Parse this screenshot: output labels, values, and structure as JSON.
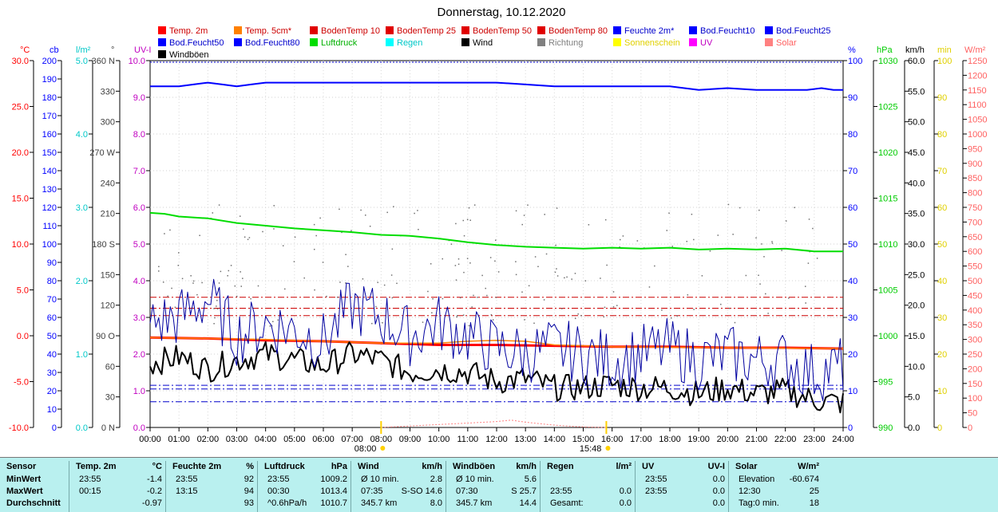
{
  "title": "Donnerstag, 10.12.2020",
  "legend": [
    {
      "label": "Temp. 2m",
      "color": "#ff0000"
    },
    {
      "label": "Temp. 5cm*",
      "color": "#ff8000"
    },
    {
      "label": "BodenTemp 10",
      "color": "#e00000"
    },
    {
      "label": "BodenTemp 25",
      "color": "#e00000"
    },
    {
      "label": "BodenTemp 50",
      "color": "#e00000"
    },
    {
      "label": "BodenTemp 80",
      "color": "#e00000"
    },
    {
      "label": "Feuchte 2m*",
      "color": "#0000ff"
    },
    {
      "label": "Bod.Feucht10",
      "color": "#0000ff"
    },
    {
      "label": "Bod.Feucht25",
      "color": "#0000ff"
    },
    {
      "label": "Bod.Feucht50",
      "color": "#0000ff"
    },
    {
      "label": "Bod.Feucht80",
      "color": "#0000ff"
    },
    {
      "label": "Luftdruck",
      "color": "#00dd00"
    },
    {
      "label": "Regen",
      "color": "#00ffff"
    },
    {
      "label": "Wind",
      "color": "#000000"
    },
    {
      "label": "Richtung",
      "color": "#808080"
    },
    {
      "label": "Sonnenschein",
      "color": "#ffff00"
    },
    {
      "label": "UV",
      "color": "#ff00ff"
    },
    {
      "label": "Solar",
      "color": "#ff8080"
    },
    {
      "label": "Windböen",
      "color": "#000000"
    }
  ],
  "axes": {
    "temp": {
      "unit": "°C",
      "color": "#ff0000",
      "min": -10,
      "max": 30,
      "ticks": [
        "30.0",
        "25.0",
        "20.0",
        "15.0",
        "10.0",
        "5.0",
        "0.0",
        "-5.0",
        "-10.0"
      ]
    },
    "cb": {
      "unit": "cb",
      "color": "#0000ff",
      "min": 0,
      "max": 200,
      "ticks": [
        "200",
        "190",
        "180",
        "170",
        "160",
        "150",
        "140",
        "130",
        "120",
        "110",
        "100",
        "90",
        "80",
        "70",
        "60",
        "50",
        "40",
        "30",
        "20",
        "10",
        "0"
      ]
    },
    "rain": {
      "unit": "l/m²",
      "color": "#00c8c8",
      "min": 0,
      "max": 5,
      "ticks": [
        "5.0",
        "4.0",
        "3.0",
        "2.0",
        "1.0",
        "0.0"
      ]
    },
    "dir": {
      "unit": "°",
      "color": "#404040",
      "min": 0,
      "max": 360,
      "ticks": [
        "360 N",
        "330",
        "300",
        "270 W",
        "240",
        "210",
        "180 S",
        "150",
        "120",
        "90 O",
        "60",
        "30",
        "0 N"
      ]
    },
    "uvi": {
      "unit": "UV-I",
      "color": "#c000c0",
      "min": 0,
      "max": 10,
      "ticks": [
        "10.0",
        "9.0",
        "8.0",
        "7.0",
        "6.0",
        "5.0",
        "4.0",
        "3.0",
        "2.0",
        "1.0",
        "0.0"
      ]
    },
    "hum": {
      "unit": "%",
      "color": "#0000ff",
      "min": 0,
      "max": 100,
      "ticks": [
        "100",
        "90",
        "80",
        "70",
        "60",
        "50",
        "40",
        "30",
        "20",
        "10",
        "0"
      ]
    },
    "press": {
      "unit": "hPa",
      "color": "#00cc00",
      "min": 990,
      "max": 1030,
      "ticks": [
        "1030",
        "1025",
        "1020",
        "1015",
        "1010",
        "1005",
        "1000",
        "995",
        "990"
      ]
    },
    "wind": {
      "unit": "km/h",
      "color": "#000000",
      "min": 0,
      "max": 60,
      "ticks": [
        "60.0",
        "55.0",
        "50.0",
        "45.0",
        "40.0",
        "35.0",
        "30.0",
        "25.0",
        "20.0",
        "15.0",
        "10.0",
        "5.0",
        "0.0"
      ]
    },
    "sun": {
      "unit": "min",
      "color": "#e0d000",
      "min": 0,
      "max": 100,
      "ticks": [
        "100",
        "90",
        "80",
        "70",
        "60",
        "50",
        "40",
        "30",
        "20",
        "10",
        "0"
      ]
    },
    "solar": {
      "unit": "W/m²",
      "color": "#ff6060",
      "min": 0,
      "max": 1250,
      "ticks": [
        "1250",
        "1200",
        "1150",
        "1100",
        "1050",
        "1000",
        "950",
        "900",
        "850",
        "800",
        "750",
        "700",
        "650",
        "600",
        "550",
        "500",
        "450",
        "400",
        "350",
        "300",
        "250",
        "200",
        "150",
        "100",
        "50",
        "0"
      ]
    }
  },
  "x_ticks": [
    "00:00",
    "01:00",
    "02:00",
    "03:00",
    "04:00",
    "05:00",
    "06:00",
    "07:00",
    "08:00",
    "09:00",
    "10:00",
    "11:00",
    "12:00",
    "13:00",
    "14:00",
    "15:00",
    "16:00",
    "17:00",
    "18:00",
    "19:00",
    "20:00",
    "21:00",
    "22:00",
    "23:00",
    "24:00"
  ],
  "x_markers": [
    {
      "label": "08:00",
      "hour": 8.0,
      "color": "#ffd000"
    },
    {
      "label": "15:48",
      "hour": 15.8,
      "color": "#ffd000"
    }
  ],
  "chart_data": {
    "type": "line",
    "title": "Donnerstag, 10.12.2020",
    "x_range": [
      "00:00",
      "24:00"
    ],
    "series": [
      {
        "name": "Feuchte 2m*",
        "axis": "hum",
        "color": "#0000ff",
        "x": [
          "00:00",
          "01:00",
          "01:30",
          "02:00",
          "02:30",
          "03:00",
          "03:30",
          "04:00",
          "06:00",
          "08:00",
          "10:00",
          "12:00",
          "13:00",
          "14:00",
          "16:00",
          "18:00",
          "19:00",
          "20:00",
          "21:00",
          "22:00",
          "22:45",
          "23:15",
          "23:40",
          "24:00"
        ],
        "y": [
          93,
          93,
          93.5,
          94,
          93.5,
          93,
          93.5,
          94,
          94,
          94,
          94,
          94,
          93.5,
          93,
          93,
          93,
          92,
          92.5,
          92,
          92,
          92,
          92.5,
          92,
          92
        ]
      },
      {
        "name": "Luftdruck",
        "axis": "press",
        "color": "#00dd00",
        "x": [
          "00:00",
          "00:30",
          "01:00",
          "02:00",
          "03:00",
          "04:00",
          "05:00",
          "06:00",
          "07:00",
          "08:00",
          "09:00",
          "10:00",
          "11:00",
          "12:00",
          "13:00",
          "14:00",
          "15:00",
          "16:00",
          "17:00",
          "18:00",
          "19:00",
          "20:00",
          "21:00",
          "22:00",
          "23:00",
          "24:00"
        ],
        "y": [
          1013.4,
          1013.3,
          1013.0,
          1012.8,
          1012.3,
          1012.0,
          1011.7,
          1011.5,
          1011.3,
          1011.0,
          1010.9,
          1010.6,
          1010.2,
          1009.9,
          1009.7,
          1009.6,
          1009.5,
          1009.6,
          1009.5,
          1009.6,
          1009.4,
          1009.5,
          1009.4,
          1009.5,
          1009.2,
          1009.2
        ]
      },
      {
        "name": "Temp. 2m",
        "axis": "temp",
        "color": "#ff0000",
        "x": [
          "00:00",
          "02:00",
          "04:00",
          "06:00",
          "08:00",
          "10:00",
          "12:00",
          "14:00",
          "16:00",
          "18:00",
          "20:00",
          "22:00",
          "24:00"
        ],
        "y": [
          -0.2,
          -0.3,
          -0.5,
          -0.6,
          -0.8,
          -1.0,
          -1.0,
          -1.1,
          -1.2,
          -1.2,
          -1.3,
          -1.3,
          -1.4
        ]
      },
      {
        "name": "Temp. 5cm*",
        "axis": "temp",
        "color": "#ff8000",
        "x": [
          "00:00",
          "02:00",
          "04:00",
          "06:00",
          "08:00",
          "10:00",
          "11:00",
          "12:00",
          "13:00",
          "14:00",
          "16:00",
          "20:00",
          "24:00"
        ],
        "y": [
          -0.2,
          -0.3,
          -0.4,
          -0.6,
          -0.8,
          -0.8,
          -0.6,
          -0.5,
          -0.6,
          -1.0,
          -1.2,
          -1.3,
          -1.4
        ]
      },
      {
        "name": "Wind",
        "axis": "wind",
        "color": "#000000",
        "x": [
          "00:00",
          "01:00",
          "02:00",
          "03:00",
          "04:00",
          "05:00",
          "06:00",
          "07:00",
          "08:00",
          "09:00",
          "10:00",
          "11:00",
          "12:00",
          "13:00",
          "14:00",
          "15:00",
          "16:00",
          "17:00",
          "18:00",
          "19:00",
          "20:00",
          "21:00",
          "22:00",
          "23:00",
          "24:00"
        ],
        "y": [
          10.5,
          11.5,
          9.5,
          11,
          12,
          11,
          10,
          12,
          11,
          9,
          9.5,
          9,
          7.5,
          8,
          6.5,
          6.5,
          7,
          6.5,
          6.5,
          5.5,
          6.5,
          5.5,
          6,
          4.5,
          4
        ]
      },
      {
        "name": "Windböen",
        "axis": "wind",
        "color": "#0000a0",
        "x": [
          "00:00",
          "01:00",
          "02:00",
          "03:00",
          "04:00",
          "05:00",
          "06:00",
          "07:00",
          "08:00",
          "09:00",
          "10:00",
          "11:00",
          "12:00",
          "13:00",
          "14:00",
          "15:00",
          "16:00",
          "17:00",
          "18:00",
          "19:00",
          "20:00",
          "21:00",
          "22:00",
          "23:00",
          "24:00"
        ],
        "y": [
          17,
          18,
          21,
          15,
          17,
          16,
          14,
          20,
          18,
          15,
          17,
          15,
          13,
          12,
          13,
          12,
          11,
          12,
          13,
          11,
          12,
          11,
          11,
          9,
          10
        ]
      },
      {
        "name": "Solar",
        "axis": "solar",
        "color": "#ff8080",
        "x": [
          "08:00",
          "09:00",
          "10:00",
          "11:00",
          "12:00",
          "12:30",
          "13:00",
          "14:00",
          "15:00",
          "15:48"
        ],
        "y": [
          0,
          5,
          10,
          15,
          20,
          25,
          18,
          8,
          2,
          0
        ]
      }
    ],
    "reference_lines": [
      {
        "axis": "temp",
        "value": 4.2,
        "color": "#cc0000"
      },
      {
        "axis": "temp",
        "value": 3.0,
        "color": "#cc0000"
      },
      {
        "axis": "temp",
        "value": 2.2,
        "color": "#cc0000"
      },
      {
        "axis": "hum",
        "value": 11.5,
        "color": "#0000cc"
      },
      {
        "axis": "hum",
        "value": 10.5,
        "color": "#0000cc"
      },
      {
        "axis": "hum",
        "value": 7,
        "color": "#0000cc"
      }
    ]
  },
  "summary": {
    "sensor": {
      "header": "Sensor",
      "rows": [
        "MinWert",
        "MaxWert",
        "Durchschnitt"
      ]
    },
    "blocks": [
      {
        "title": "Temp. 2m",
        "unit": "°C",
        "rows": [
          [
            "23:55",
            "",
            "-1.4"
          ],
          [
            "00:15",
            "",
            "-0.2"
          ],
          [
            "",
            "",
            "-0.97"
          ]
        ]
      },
      {
        "title": "Feuchte 2m",
        "unit": "%",
        "rows": [
          [
            "23:55",
            "",
            "92"
          ],
          [
            "13:15",
            "",
            "94"
          ],
          [
            "",
            "",
            "93"
          ]
        ]
      },
      {
        "title": "Luftdruck",
        "unit": "hPa",
        "rows": [
          [
            "23:55",
            "",
            "1009.2"
          ],
          [
            "00:30",
            "",
            "1013.4"
          ],
          [
            "^0.6hPa/h",
            "",
            "1010.7"
          ]
        ]
      },
      {
        "title": "Wind",
        "unit": "km/h",
        "rows": [
          [
            "Ø 10 min.",
            "",
            "2.8"
          ],
          [
            "07:35",
            "S-SO 14.6",
            ""
          ],
          [
            "345.7 km",
            "",
            "8.0"
          ]
        ]
      },
      {
        "title": "Windböen",
        "unit": "km/h",
        "rows": [
          [
            "Ø 10 min.",
            "",
            "5.6"
          ],
          [
            "07:30",
            "S 25.7",
            ""
          ],
          [
            "345.7 km",
            "",
            "14.4"
          ]
        ]
      },
      {
        "title": "Regen",
        "unit": "l/m²",
        "rows": [
          [
            "",
            "",
            ""
          ],
          [
            "23:55",
            "",
            "0.0"
          ],
          [
            "Gesamt:",
            "",
            "0.0"
          ]
        ]
      },
      {
        "title": "UV",
        "unit": "UV-I",
        "rows": [
          [
            "23:55",
            "",
            "0.0"
          ],
          [
            "23:55",
            "",
            "0.0"
          ],
          [
            "",
            "",
            "0.0"
          ]
        ]
      },
      {
        "title": "Solar",
        "unit": "W/m²",
        "rows": [
          [
            "Elevation",
            "",
            "-60.674"
          ],
          [
            "12:30",
            "",
            "25"
          ],
          [
            "Tag:0 min.",
            "",
            "18"
          ]
        ]
      }
    ]
  }
}
